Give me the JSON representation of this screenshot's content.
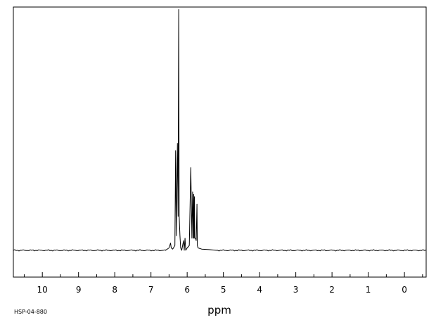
{
  "chart_data": {
    "type": "line",
    "title": "",
    "xlabel": "ppm",
    "ylabel": "",
    "spectrum_code": "HSP-04-880",
    "x_axis_reversed": true,
    "xlim": [
      10.8,
      -0.6
    ],
    "ylim": [
      -0.11,
      1.0
    ],
    "x_ticks": [
      10,
      9,
      8,
      7,
      6,
      5,
      4,
      3,
      2,
      1,
      0
    ],
    "x_tick_labels": [
      "10",
      "9",
      "8",
      "7",
      "6",
      "5",
      "4",
      "3",
      "2",
      "1",
      "0"
    ],
    "grid": false,
    "series": [
      {
        "x": [
          10.8,
          6.6,
          6.5,
          6.46,
          6.44,
          6.4,
          6.34,
          6.32,
          6.3,
          6.27,
          6.25,
          6.235,
          6.22,
          6.2,
          6.18,
          6.15,
          6.1,
          6.08,
          6.06,
          6.04,
          6.0,
          5.94,
          5.9,
          5.87,
          5.85,
          5.83,
          5.82,
          5.81,
          5.8,
          5.79,
          5.77,
          5.75,
          5.73,
          5.72,
          5.7,
          5.6,
          5.4,
          5.2,
          -0.6
        ],
        "y": [
          0.0,
          0.0,
          0.01,
          0.03,
          0.01,
          0.005,
          0.02,
          0.41,
          0.06,
          0.44,
          0.14,
          0.99,
          0.14,
          0.06,
          0.01,
          0.0,
          0.04,
          0.0,
          0.05,
          0.0,
          0.01,
          0.02,
          0.34,
          0.05,
          0.24,
          0.05,
          0.23,
          0.05,
          0.22,
          0.05,
          0.05,
          0.04,
          0.19,
          0.02,
          0.01,
          0.005,
          0.003,
          0.0,
          0.0
        ]
      }
    ]
  }
}
